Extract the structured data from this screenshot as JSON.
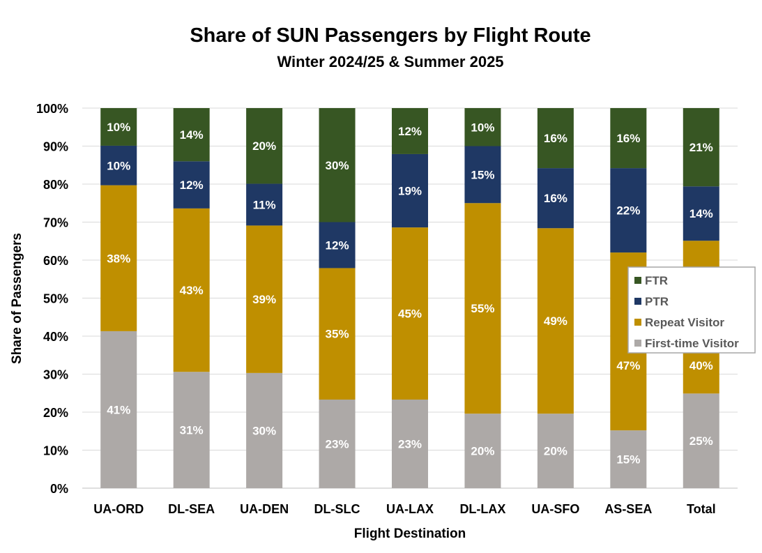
{
  "chart_data": {
    "type": "bar",
    "stacked": true,
    "title": "Share of SUN Passengers by Flight Route",
    "subtitle": "Winter 2024/25 & Summer 2025",
    "xlabel": "Flight Destination",
    "ylabel": "Share of Passengers",
    "ylim": [
      0,
      100
    ],
    "yticks": [
      "0%",
      "10%",
      "20%",
      "30%",
      "40%",
      "50%",
      "60%",
      "70%",
      "80%",
      "90%",
      "100%"
    ],
    "grid": true,
    "legend_position": "right",
    "categories": [
      "UA-ORD",
      "DL-SEA",
      "UA-DEN",
      "DL-SLC",
      "UA-LAX",
      "DL-LAX",
      "UA-SFO",
      "AS-SEA",
      "Total"
    ],
    "series": [
      {
        "name": "First-time Visitor",
        "color": "#ADA9A7",
        "values": [
          41.3,
          30.6,
          30.3,
          23.3,
          23.3,
          19.6,
          19.6,
          15.2,
          24.9
        ]
      },
      {
        "name": "Repeat Visitor",
        "color": "#BF8F00",
        "values": [
          38.4,
          43.0,
          38.8,
          34.6,
          45.3,
          55.4,
          48.8,
          46.8,
          40.2
        ]
      },
      {
        "name": "PTR",
        "color": "#1F3864",
        "values": [
          10.4,
          12.4,
          11.0,
          12.1,
          19.3,
          15.0,
          15.8,
          22.2,
          14.3
        ]
      },
      {
        "name": "FTR",
        "color": "#375623",
        "values": [
          9.9,
          14.0,
          19.9,
          30.0,
          12.1,
          10.0,
          15.8,
          15.8,
          20.6
        ]
      }
    ],
    "legend_order": [
      "FTR",
      "PTR",
      "Repeat Visitor",
      "First-time Visitor"
    ]
  }
}
